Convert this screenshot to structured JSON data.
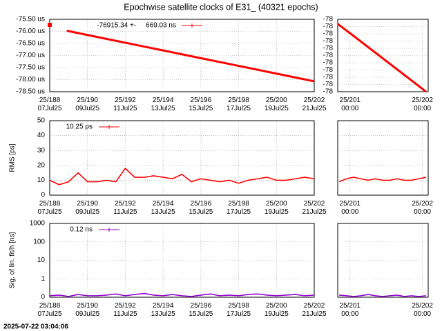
{
  "title": "Epochwise satellite clocks of E31_ (40321 epochs)",
  "footer": "2025-07-22 03:04:06",
  "chart_data": [
    {
      "type": "line",
      "xlim": [
        188,
        202
      ],
      "ylim": [
        -78.5,
        -75.5
      ],
      "xticks": [
        {
          "value": 188,
          "label": "25/188\n07Jul25"
        },
        {
          "value": 190,
          "label": "25/190\n09Jul25"
        },
        {
          "value": 192,
          "label": "25/192\n11Jul25"
        },
        {
          "value": 194,
          "label": "25/194\n13Jul25"
        },
        {
          "value": 196,
          "label": "25/196\n15Jul25"
        },
        {
          "value": 198,
          "label": "25/198\n17Jul25"
        },
        {
          "value": 200,
          "label": "25/200\n19Jul25"
        },
        {
          "value": 202,
          "label": "25/202\n21Jul25"
        }
      ],
      "yticks": [
        {
          "value": -75.5,
          "label": "-75.50 us"
        },
        {
          "value": -76,
          "label": "-76.00 us"
        },
        {
          "value": -76.5,
          "label": "-76.50 us"
        },
        {
          "value": -77,
          "label": "-77.00 us"
        },
        {
          "value": -77.5,
          "label": "-77.50 us"
        },
        {
          "value": -78,
          "label": "-78.00 us"
        },
        {
          "value": -78.5,
          "label": "-78.50 us"
        }
      ],
      "grid": true,
      "x": [
        188,
        188.5,
        188.9,
        189,
        190,
        191,
        192,
        193,
        194,
        195,
        196,
        197,
        198,
        199,
        200,
        201,
        202
      ],
      "series": [
        {
          "name": "-76915.34 +-     669.03 ns",
          "color": "#ff0000",
          "values": [
            -75.73,
            null,
            -75.97,
            -75.99,
            -76.15,
            -76.31,
            -76.47,
            -76.63,
            -76.79,
            -76.95,
            -77.11,
            -77.27,
            -77.43,
            -77.59,
            -77.75,
            -77.91,
            -78.07
          ]
        }
      ]
    },
    {
      "type": "line",
      "xlim": [
        200.83,
        202.08
      ],
      "ylim": [
        -78.1,
        -77.975
      ],
      "xticks": [
        {
          "value": 201,
          "label": "25/201\n00:00"
        },
        {
          "value": 202,
          "label": "25/202\n00:00"
        }
      ],
      "yticks": [
        {
          "value": -77.975,
          "label": "-78"
        },
        {
          "value": -77.9875,
          "label": "-78"
        },
        {
          "value": -78,
          "label": "-78"
        },
        {
          "value": -78.0125,
          "label": "-78"
        },
        {
          "value": -78.025,
          "label": "-78"
        },
        {
          "value": -78.0375,
          "label": "-78"
        },
        {
          "value": -78.05,
          "label": "-78"
        },
        {
          "value": -78.0625,
          "label": "-78"
        },
        {
          "value": -78.075,
          "label": "-78"
        },
        {
          "value": -78.0875,
          "label": "-78"
        },
        {
          "value": -78.1,
          "label": "-78"
        }
      ],
      "grid": true,
      "x": [
        200.83,
        201,
        201.5,
        202,
        202.05
      ],
      "series": [
        {
          "color": "#ff0000",
          "values": [
            -77.983,
            -77.999,
            -78.047,
            -78.095,
            -78.1
          ]
        }
      ]
    },
    {
      "type": "line",
      "ylabel": "RMS [ps]",
      "xlim": [
        188,
        202
      ],
      "ylim": [
        0,
        50
      ],
      "xticks": [
        {
          "value": 188,
          "label": "25/188\n07Jul25"
        },
        {
          "value": 190,
          "label": "25/190\n09Jul25"
        },
        {
          "value": 192,
          "label": "25/192\n11Jul25"
        },
        {
          "value": 194,
          "label": "25/194\n13Jul25"
        },
        {
          "value": 196,
          "label": "25/196\n15Jul25"
        },
        {
          "value": 198,
          "label": "25/198\n17Jul25"
        },
        {
          "value": 200,
          "label": "25/200\n19Jul25"
        },
        {
          "value": 202,
          "label": "25/202\n21Jul25"
        }
      ],
      "yticks": [
        0,
        10,
        20,
        30,
        40,
        50
      ],
      "grid": true,
      "x": [
        188,
        188.5,
        189,
        189.5,
        190,
        190.5,
        191,
        191.5,
        192,
        192.5,
        193,
        193.5,
        194,
        194.5,
        195,
        195.5,
        196,
        196.5,
        197,
        197.5,
        198,
        198.5,
        199,
        199.5,
        200,
        200.5,
        201,
        201.5,
        202
      ],
      "series": [
        {
          "name": "10.25 ps",
          "color": "#ff0000",
          "values": [
            10,
            7,
            9,
            15,
            9,
            9,
            10,
            9,
            18,
            12,
            12,
            13,
            12,
            11,
            14,
            9,
            11,
            10,
            9,
            10,
            8,
            10,
            11,
            12,
            10,
            10,
            11,
            12,
            11
          ]
        }
      ]
    },
    {
      "type": "line",
      "xlim": [
        200.83,
        202.08
      ],
      "ylim": [
        0,
        50
      ],
      "xticks": [
        {
          "value": 201,
          "label": "25/201\n00:00"
        },
        {
          "value": 202,
          "label": "25/202\n00:00"
        }
      ],
      "yticks": [
        0,
        10,
        20,
        30,
        40,
        50
      ],
      "show_ytick_labels": false,
      "grid": true,
      "x": [
        200.85,
        200.95,
        201.05,
        201.15,
        201.25,
        201.35,
        201.45,
        201.55,
        201.65,
        201.75,
        201.85,
        201.95,
        202.05
      ],
      "series": [
        {
          "color": "#ff0000",
          "values": [
            9,
            11,
            12,
            11,
            10,
            11,
            10,
            10,
            11,
            10,
            10,
            11,
            12
          ]
        }
      ]
    },
    {
      "type": "line",
      "ylabel": "Sig. of lin. fit/h [ns]",
      "log": true,
      "xlim": [
        188,
        202
      ],
      "ylim": [
        0.1,
        1000
      ],
      "xticks": [
        {
          "value": 188,
          "label": "25/188\n07Jul25"
        },
        {
          "value": 190,
          "label": "25/190\n09Jul25"
        },
        {
          "value": 192,
          "label": "25/192\n11Jul25"
        },
        {
          "value": 194,
          "label": "25/194\n13Jul25"
        },
        {
          "value": 196,
          "label": "25/196\n15Jul25"
        },
        {
          "value": 198,
          "label": "25/198\n17Jul25"
        },
        {
          "value": 200,
          "label": "25/200\n19Jul25"
        },
        {
          "value": 202,
          "label": "25/202\n21Jul25"
        }
      ],
      "yticks": [
        {
          "value": 0.1,
          "label": "0"
        },
        1,
        10,
        100,
        1000
      ],
      "grid": true,
      "x": [
        188,
        188.5,
        189,
        189.5,
        190,
        190.5,
        191,
        191.5,
        192,
        192.5,
        193,
        193.5,
        194,
        194.5,
        195,
        195.5,
        196,
        196.5,
        197,
        197.5,
        198,
        198.5,
        199,
        199.5,
        200,
        200.5,
        201,
        201.5,
        202
      ],
      "series": [
        {
          "name": "0.12 ns",
          "color": "#9400d3",
          "values": [
            0.12,
            0.13,
            0.11,
            0.14,
            0.12,
            0.12,
            0.13,
            0.15,
            0.12,
            0.14,
            0.16,
            0.13,
            0.12,
            0.14,
            0.12,
            0.11,
            0.13,
            0.15,
            0.12,
            0.13,
            0.12,
            0.14,
            0.15,
            0.13,
            0.12,
            0.13,
            0.14,
            0.12,
            0.13
          ]
        }
      ]
    },
    {
      "type": "line",
      "log": true,
      "xlim": [
        200.83,
        202.08
      ],
      "ylim": [
        0.1,
        1000
      ],
      "xticks": [
        {
          "value": 201,
          "label": "25/201\n00:00"
        },
        {
          "value": 202,
          "label": "25/202\n00:00"
        }
      ],
      "yticks": [
        0.1,
        1,
        10,
        100,
        1000
      ],
      "show_ytick_labels": false,
      "grid": true,
      "x": [
        200.85,
        200.95,
        201.05,
        201.15,
        201.25,
        201.35,
        201.45,
        201.55,
        201.65,
        201.75,
        201.85,
        201.95,
        202.05
      ],
      "series": [
        {
          "color": "#9400d3",
          "values": [
            0.13,
            0.12,
            0.11,
            0.12,
            0.14,
            0.12,
            0.11,
            0.12,
            0.13,
            0.11,
            0.12,
            0.11,
            0.12
          ]
        }
      ]
    }
  ]
}
